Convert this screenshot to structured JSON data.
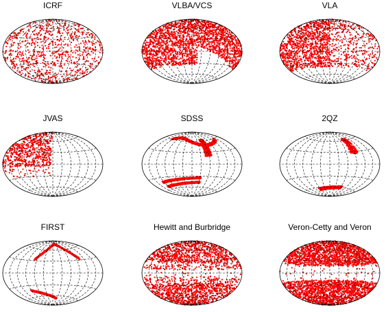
{
  "figure": {
    "background": "#ffffff",
    "point_color": "#ff0000",
    "grid_color": "#000000"
  },
  "chart_data": [
    {
      "type": "scatter",
      "title": "ICRF",
      "projection": "hammer-aitoff",
      "grid": "dashed",
      "coverage": "uniform-sparse"
    },
    {
      "type": "scatter",
      "title": "VLBA/VCS",
      "projection": "hammer-aitoff",
      "grid": "dashed",
      "coverage": "dense, southern-east gap"
    },
    {
      "type": "scatter",
      "title": "VLA",
      "projection": "hammer-aitoff",
      "grid": "dashed",
      "coverage": "dense left half, sparse right"
    },
    {
      "type": "scatter",
      "title": "JVAS",
      "projection": "hammer-aitoff",
      "grid": "dashed",
      "coverage": "northern-west hemisphere"
    },
    {
      "type": "scatter",
      "title": "SDSS",
      "projection": "hammer-aitoff",
      "grid": "dashed",
      "coverage": "stripes"
    },
    {
      "type": "scatter",
      "title": "2QZ",
      "projection": "hammer-aitoff",
      "grid": "dashed",
      "coverage": "two narrow strips"
    },
    {
      "type": "scatter",
      "title": "FIRST",
      "projection": "hammer-aitoff",
      "grid": "dashed",
      "coverage": "arc strips"
    },
    {
      "type": "scatter",
      "title": "Hewitt and Burbridge",
      "projection": "hammer-aitoff",
      "grid": "dashed",
      "coverage": "avoids plane"
    },
    {
      "type": "scatter",
      "title": "Veron-Cetty and Veron",
      "projection": "hammer-aitoff",
      "grid": "dashed",
      "coverage": "dense, avoids plane"
    }
  ]
}
